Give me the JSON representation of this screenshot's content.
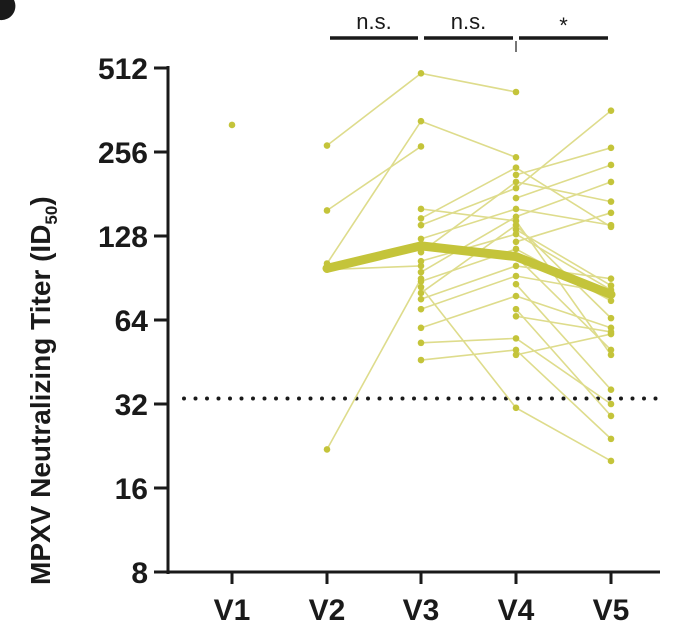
{
  "chart_data": {
    "type": "line",
    "ylabel": {
      "main": "MPXV Neutralizing Titer (ID",
      "sub": "50",
      "close": ")"
    },
    "xlabel": "",
    "y_scale": "log2",
    "ylim": [
      8,
      512
    ],
    "y_ticks": [
      "8",
      "16",
      "32",
      "64",
      "128",
      "256",
      "512"
    ],
    "y_tick_values": [
      8,
      16,
      32,
      64,
      128,
      256,
      512
    ],
    "categories": [
      "V1",
      "V2",
      "V3",
      "V4",
      "V5"
    ],
    "threshold": {
      "value": 33.5,
      "style": "dotted"
    },
    "significance": [
      {
        "from": "V2",
        "to": "V3",
        "label": "n.s."
      },
      {
        "from": "V3",
        "to": "V4",
        "label": "n.s."
      },
      {
        "from": "V4",
        "to": "V5",
        "label": "*"
      }
    ],
    "mean_series": {
      "categories": [
        "V2",
        "V3",
        "V4",
        "V5"
      ],
      "values": [
        98,
        118,
        108,
        79
      ]
    },
    "individual_series": [
      {
        "categories": [
          "V1"
        ],
        "values": [
          320
        ]
      },
      {
        "categories": [
          "V2",
          "V3",
          "V4"
        ],
        "values": [
          270,
          490,
          420
        ]
      },
      {
        "categories": [
          "V2",
          "V3",
          "V4"
        ],
        "values": [
          102,
          330,
          245
        ]
      },
      {
        "categories": [
          "V2",
          "V3"
        ],
        "values": [
          158,
          268
        ]
      },
      {
        "categories": [
          "V2",
          "V3"
        ],
        "values": [
          22,
          90
        ]
      },
      {
        "categories": [
          "V2",
          "V3"
        ],
        "values": [
          97,
          100
        ]
      },
      {
        "categories": [
          "V3",
          "V4",
          "V5"
        ],
        "values": [
          160,
          145,
          48
        ]
      },
      {
        "categories": [
          "V3",
          "V4",
          "V5"
        ],
        "values": [
          148,
          225,
          138
        ]
      },
      {
        "categories": [
          "V3",
          "V4",
          "V5"
        ],
        "values": [
          140,
          190,
          360
        ]
      },
      {
        "categories": [
          "V3",
          "V4",
          "V5"
        ],
        "values": [
          125,
          160,
          140
        ]
      },
      {
        "categories": [
          "V3",
          "V4",
          "V5"
        ],
        "values": [
          112,
          200,
          170
        ]
      },
      {
        "categories": [
          "V3",
          "V4",
          "V5"
        ],
        "values": [
          104,
          130,
          82
        ]
      },
      {
        "categories": [
          "V3",
          "V4",
          "V5"
        ],
        "values": [
          95,
          150,
          200
        ]
      },
      {
        "categories": [
          "V3",
          "V4",
          "V5"
        ],
        "values": [
          88,
          115,
          75
        ]
      },
      {
        "categories": [
          "V3",
          "V4",
          "V5"
        ],
        "values": [
          80,
          140,
          65
        ]
      },
      {
        "categories": [
          "V3",
          "V4",
          "V5"
        ],
        "values": [
          76,
          100,
          90
        ]
      },
      {
        "categories": [
          "V3",
          "V4",
          "V5"
        ],
        "values": [
          70,
          92,
          80
        ]
      },
      {
        "categories": [
          "V3",
          "V4",
          "V5"
        ],
        "values": [
          60,
          78,
          60
        ]
      },
      {
        "categories": [
          "V3",
          "V4",
          "V5"
        ],
        "values": [
          53,
          55,
          32
        ]
      },
      {
        "categories": [
          "V3",
          "V4",
          "V5"
        ],
        "values": [
          46,
          50,
          24
        ]
      },
      {
        "categories": [
          "V3",
          "V4",
          "V5"
        ],
        "values": [
          84,
          31,
          20
        ]
      },
      {
        "categories": [
          "V4",
          "V5"
        ],
        "values": [
          212,
          265
        ]
      },
      {
        "categories": [
          "V4",
          "V5"
        ],
        "values": [
          175,
          230
        ]
      },
      {
        "categories": [
          "V4",
          "V5"
        ],
        "values": [
          122,
          155
        ]
      },
      {
        "categories": [
          "V4",
          "V5"
        ],
        "values": [
          108,
          50
        ]
      },
      {
        "categories": [
          "V4",
          "V5"
        ],
        "values": [
          86,
          36
        ]
      },
      {
        "categories": [
          "V4",
          "V5"
        ],
        "values": [
          70,
          29
        ]
      },
      {
        "categories": [
          "V4",
          "V5"
        ],
        "values": [
          66,
          58
        ]
      },
      {
        "categories": [
          "V4",
          "V5"
        ],
        "values": [
          48,
          57
        ]
      },
      {
        "categories": [
          "V4",
          "V5"
        ],
        "values": [
          135,
          85
        ]
      }
    ],
    "grid": false,
    "legend": "none"
  },
  "colors": {
    "series": "#c4c43a",
    "series_light": "#dedc8c",
    "axis": "#1a1a1a",
    "threshold": "#1a1a1a"
  }
}
